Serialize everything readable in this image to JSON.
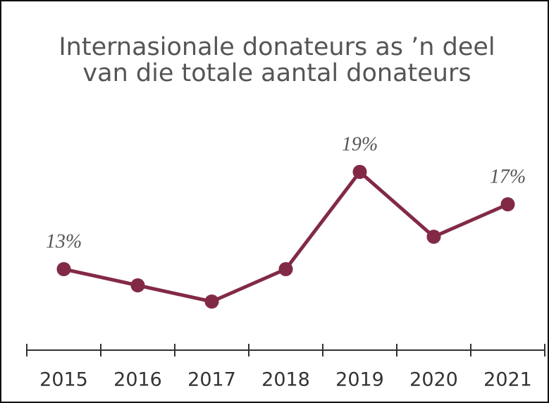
{
  "chart_data": {
    "type": "line",
    "title": [
      "Internasionale donateurs as ’n deel",
      "van die totale aantal donateurs"
    ],
    "categories": [
      "2015",
      "2016",
      "2017",
      "2018",
      "2019",
      "2020",
      "2021"
    ],
    "series": [
      {
        "name": null,
        "color": "#822a45",
        "values": [
          13,
          12,
          11,
          13,
          19,
          15,
          17
        ],
        "value_labels": [
          "13%",
          null,
          null,
          null,
          "19%",
          null,
          "17%"
        ]
      }
    ],
    "ylim": [
      8,
      22
    ]
  }
}
